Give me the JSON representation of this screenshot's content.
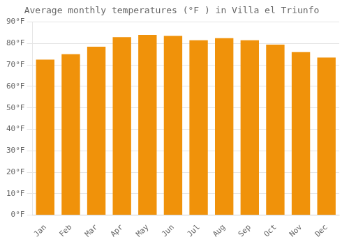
{
  "chart_data": {
    "type": "bar",
    "title": "Average monthly temperatures (°F ) in Villa el Triunfo",
    "categories": [
      "Jan",
      "Feb",
      "Mar",
      "Apr",
      "May",
      "Jun",
      "Jul",
      "Aug",
      "Sep",
      "Oct",
      "Nov",
      "Dec"
    ],
    "values": [
      72.5,
      75.0,
      78.5,
      83.0,
      84.0,
      83.5,
      81.5,
      82.5,
      81.5,
      79.5,
      76.0,
      73.5
    ],
    "color": "#F0920A",
    "ylim": [
      0,
      90
    ],
    "yticks": [
      {
        "value": 0,
        "label": "0°F"
      },
      {
        "value": 10,
        "label": "10°F"
      },
      {
        "value": 20,
        "label": "20°F"
      },
      {
        "value": 30,
        "label": "30°F"
      },
      {
        "value": 40,
        "label": "40°F"
      },
      {
        "value": 50,
        "label": "50°F"
      },
      {
        "value": 60,
        "label": "60°F"
      },
      {
        "value": 70,
        "label": "70°F"
      },
      {
        "value": 80,
        "label": "80°F"
      },
      {
        "value": 90,
        "label": "90°F"
      }
    ],
    "grid": true
  }
}
